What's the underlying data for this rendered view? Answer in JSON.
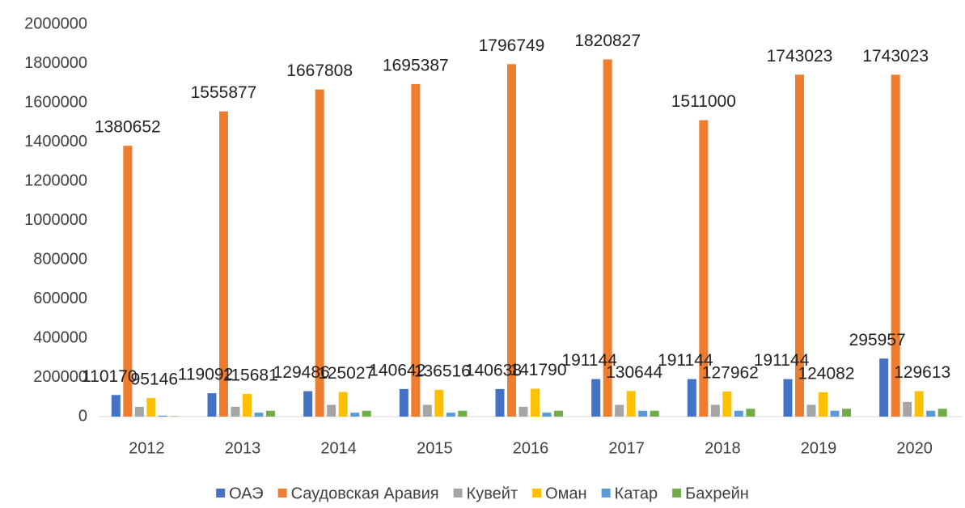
{
  "chart_data": {
    "type": "bar",
    "categories": [
      "2012",
      "2013",
      "2014",
      "2015",
      "2016",
      "2017",
      "2018",
      "2019",
      "2020"
    ],
    "series": [
      {
        "name": "ОАЭ",
        "color": "#4472c4",
        "data_labels": true,
        "values": [
          110170,
          119092,
          129486,
          140642,
          140638,
          191144,
          191144,
          191144,
          295957
        ]
      },
      {
        "name": "Саудовская Аравия",
        "color": "#ed7d31",
        "data_labels": true,
        "values": [
          1380652,
          1555877,
          1667808,
          1695387,
          1796749,
          1820827,
          1511000,
          1743023,
          1743023
        ]
      },
      {
        "name": "Кувейт",
        "color": "#a5a5a5",
        "data_labels": false,
        "values": [
          50000,
          50000,
          60000,
          60000,
          50000,
          60000,
          60000,
          60000,
          75000
        ]
      },
      {
        "name": "Оман",
        "color": "#ffc000",
        "data_labels": true,
        "values": [
          95146,
          115681,
          125027,
          136516,
          141790,
          130644,
          127962,
          124082,
          129613
        ]
      },
      {
        "name": "Катар",
        "color": "#5b9bd5",
        "data_labels": false,
        "values": [
          5000,
          20000,
          20000,
          20000,
          20000,
          30000,
          30000,
          30000,
          30000
        ]
      },
      {
        "name": "Бахрейн",
        "color": "#70ad47",
        "data_labels": false,
        "values": [
          2000,
          30000,
          30000,
          30000,
          30000,
          30000,
          40000,
          40000,
          40000
        ]
      }
    ],
    "ylim": [
      0,
      2000000
    ],
    "yticks": [
      0,
      200000,
      400000,
      600000,
      800000,
      1000000,
      1200000,
      1400000,
      1600000,
      1800000,
      2000000
    ],
    "grid": false,
    "legend": "bottom"
  }
}
